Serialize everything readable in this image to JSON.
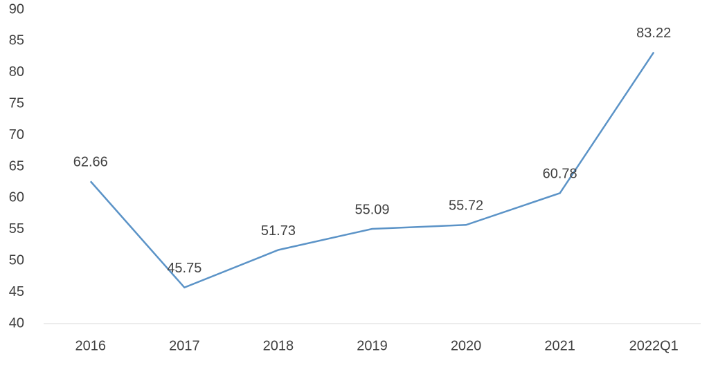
{
  "chart_data": {
    "type": "line",
    "categories": [
      "2016",
      "2017",
      "2018",
      "2019",
      "2020",
      "2021",
      "2022Q1"
    ],
    "series": [
      {
        "values": [
          62.66,
          45.75,
          51.73,
          55.09,
          55.72,
          60.78,
          83.22
        ],
        "color": "#5b93c7"
      }
    ],
    "ylim": [
      40,
      90
    ],
    "yticks": [
      40,
      45,
      50,
      55,
      60,
      65,
      70,
      75,
      80,
      85,
      90
    ],
    "grid": false
  }
}
